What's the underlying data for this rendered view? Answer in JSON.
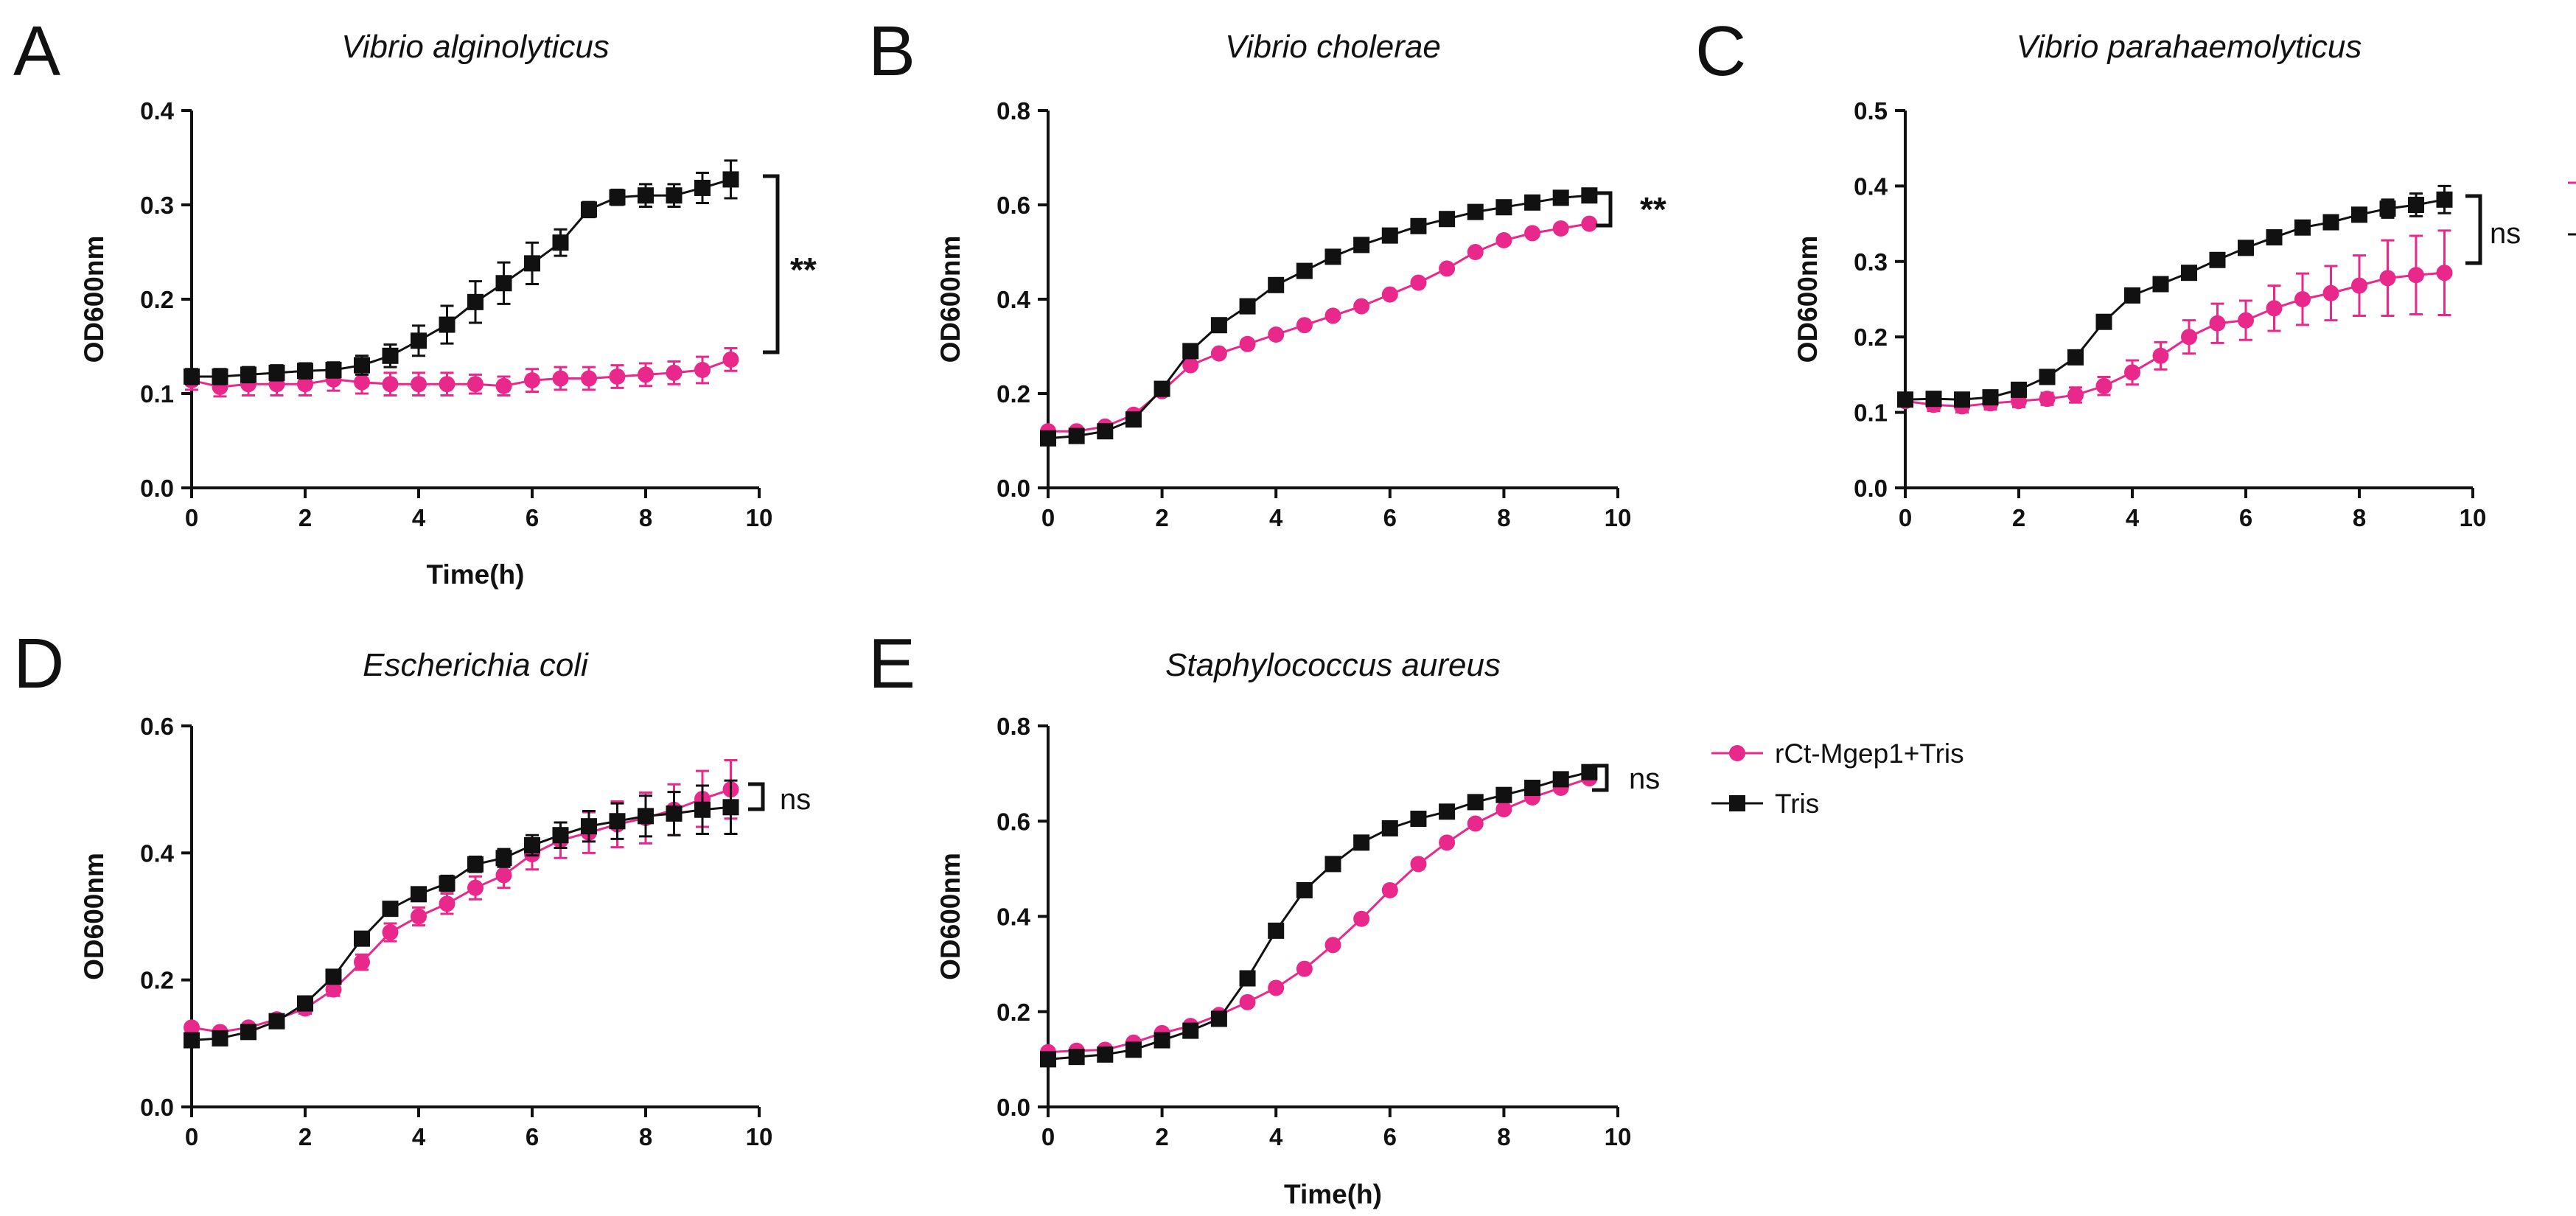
{
  "figure": {
    "legend": [
      {
        "label": "rCt-Mgep1+Tris",
        "color": "#e8288a",
        "marker": "circle"
      },
      {
        "label": "Tris",
        "color": "#111111",
        "marker": "square"
      }
    ]
  },
  "chart_data": [
    {
      "type": "line",
      "panel": "A",
      "title": "Vibrio alginolyticus",
      "xlabel": "Time(h)",
      "ylabel": "OD600nm",
      "xlim": [
        0,
        10
      ],
      "ylim": [
        0,
        0.4
      ],
      "xticks": [
        "0",
        "2",
        "4",
        "6",
        "8",
        "10"
      ],
      "yticks": [
        "0.0",
        "0.1",
        "0.2",
        "0.3",
        "0.4"
      ],
      "significance": "**",
      "x": [
        0,
        0.5,
        1,
        1.5,
        2,
        2.5,
        3,
        3.5,
        4,
        4.5,
        5,
        5.5,
        6,
        6.5,
        7,
        7.5,
        8,
        8.5,
        9,
        9.5
      ],
      "series": [
        {
          "name": "rCt-Mgep1+Tris",
          "color": "#e8288a",
          "marker": "circle",
          "values": [
            0.114,
            0.107,
            0.11,
            0.11,
            0.11,
            0.115,
            0.112,
            0.11,
            0.11,
            0.11,
            0.11,
            0.108,
            0.114,
            0.116,
            0.116,
            0.118,
            0.12,
            0.122,
            0.125,
            0.136
          ],
          "errors": [
            0.01,
            0.01,
            0.012,
            0.012,
            0.012,
            0.012,
            0.012,
            0.012,
            0.012,
            0.012,
            0.01,
            0.01,
            0.012,
            0.012,
            0.012,
            0.012,
            0.012,
            0.012,
            0.014,
            0.012
          ]
        },
        {
          "name": "Tris",
          "color": "#111111",
          "marker": "square",
          "values": [
            0.118,
            0.118,
            0.12,
            0.122,
            0.124,
            0.125,
            0.13,
            0.14,
            0.156,
            0.173,
            0.197,
            0.217,
            0.238,
            0.26,
            0.295,
            0.308,
            0.31,
            0.31,
            0.318,
            0.327
          ],
          "errors": [
            0.008,
            0.008,
            0.008,
            0.008,
            0.008,
            0.008,
            0.01,
            0.012,
            0.016,
            0.02,
            0.022,
            0.022,
            0.022,
            0.014,
            0.008,
            0.008,
            0.012,
            0.012,
            0.016,
            0.02
          ]
        }
      ]
    },
    {
      "type": "line",
      "panel": "B",
      "title": "Vibrio cholerae",
      "xlabel": "",
      "ylabel": "OD600nm",
      "xlim": [
        0,
        10
      ],
      "ylim": [
        0,
        0.8
      ],
      "xticks": [
        "0",
        "2",
        "4",
        "6",
        "8",
        "10"
      ],
      "yticks": [
        "0.0",
        "0.2",
        "0.4",
        "0.6",
        "0.8"
      ],
      "significance": "**",
      "x": [
        0,
        0.5,
        1,
        1.5,
        2,
        2.5,
        3,
        3.5,
        4,
        4.5,
        5,
        5.5,
        6,
        6.5,
        7,
        7.5,
        8,
        8.5,
        9,
        9.5
      ],
      "series": [
        {
          "name": "rCt-Mgep1+Tris",
          "color": "#e8288a",
          "marker": "circle",
          "values": [
            0.12,
            0.12,
            0.13,
            0.155,
            0.205,
            0.26,
            0.285,
            0.305,
            0.325,
            0.345,
            0.365,
            0.385,
            0.41,
            0.435,
            0.465,
            0.5,
            0.525,
            0.54,
            0.55,
            0.56
          ],
          "errors": [
            0.005,
            0.005,
            0.005,
            0.006,
            0.006,
            0.006,
            0.006,
            0.006,
            0.006,
            0.006,
            0.006,
            0.006,
            0.006,
            0.006,
            0.006,
            0.006,
            0.006,
            0.006,
            0.006,
            0.006
          ]
        },
        {
          "name": "Tris",
          "color": "#111111",
          "marker": "square",
          "values": [
            0.105,
            0.11,
            0.12,
            0.145,
            0.21,
            0.29,
            0.345,
            0.385,
            0.43,
            0.46,
            0.49,
            0.515,
            0.535,
            0.555,
            0.57,
            0.585,
            0.595,
            0.605,
            0.615,
            0.62
          ],
          "errors": [
            0.005,
            0.005,
            0.005,
            0.006,
            0.006,
            0.006,
            0.006,
            0.006,
            0.006,
            0.006,
            0.006,
            0.006,
            0.006,
            0.006,
            0.006,
            0.006,
            0.006,
            0.006,
            0.006,
            0.006
          ]
        }
      ]
    },
    {
      "type": "line",
      "panel": "C",
      "title": "Vibrio parahaemolyticus",
      "xlabel": "",
      "ylabel": "OD600nm",
      "xlim": [
        0,
        10
      ],
      "ylim": [
        0,
        0.5
      ],
      "xticks": [
        "0",
        "2",
        "4",
        "6",
        "8",
        "10"
      ],
      "yticks": [
        "0.0",
        "0.1",
        "0.2",
        "0.3",
        "0.4",
        "0.5"
      ],
      "significance": "ns",
      "x": [
        0,
        0.5,
        1,
        1.5,
        2,
        2.5,
        3,
        3.5,
        4,
        4.5,
        5,
        5.5,
        6,
        6.5,
        7,
        7.5,
        8,
        8.5,
        9,
        9.5
      ],
      "series": [
        {
          "name": "rCt-Mgep1+Tris",
          "color": "#e8288a",
          "marker": "circle",
          "values": [
            0.115,
            0.11,
            0.108,
            0.112,
            0.115,
            0.118,
            0.123,
            0.135,
            0.153,
            0.175,
            0.2,
            0.218,
            0.222,
            0.238,
            0.25,
            0.258,
            0.268,
            0.278,
            0.282,
            0.285
          ],
          "errors": [
            0.006,
            0.008,
            0.008,
            0.008,
            0.008,
            0.008,
            0.01,
            0.012,
            0.016,
            0.018,
            0.022,
            0.026,
            0.026,
            0.03,
            0.034,
            0.036,
            0.04,
            0.05,
            0.052,
            0.056
          ]
        },
        {
          "name": "Tris",
          "color": "#111111",
          "marker": "square",
          "values": [
            0.117,
            0.118,
            0.117,
            0.12,
            0.13,
            0.147,
            0.173,
            0.22,
            0.255,
            0.27,
            0.285,
            0.302,
            0.318,
            0.332,
            0.345,
            0.352,
            0.362,
            0.37,
            0.375,
            0.382
          ],
          "errors": [
            0.006,
            0.006,
            0.006,
            0.006,
            0.006,
            0.006,
            0.006,
            0.006,
            0.006,
            0.006,
            0.006,
            0.006,
            0.006,
            0.006,
            0.006,
            0.006,
            0.008,
            0.012,
            0.015,
            0.018
          ]
        }
      ]
    },
    {
      "type": "line",
      "panel": "D",
      "title": "Escherichia coli",
      "xlabel": "",
      "ylabel": "OD600nm",
      "xlim": [
        0,
        10
      ],
      "ylim": [
        0,
        0.6
      ],
      "xticks": [
        "0",
        "2",
        "4",
        "6",
        "8",
        "10"
      ],
      "yticks": [
        "0.0",
        "0.2",
        "0.4",
        "0.6"
      ],
      "significance": "ns",
      "x": [
        0,
        0.5,
        1,
        1.5,
        2,
        2.5,
        3,
        3.5,
        4,
        4.5,
        5,
        5.5,
        6,
        6.5,
        7,
        7.5,
        8,
        8.5,
        9,
        9.5
      ],
      "series": [
        {
          "name": "rCt-Mgep1+Tris",
          "color": "#e8288a",
          "marker": "circle",
          "values": [
            0.125,
            0.118,
            0.125,
            0.138,
            0.155,
            0.185,
            0.228,
            0.275,
            0.3,
            0.32,
            0.345,
            0.365,
            0.398,
            0.42,
            0.432,
            0.445,
            0.455,
            0.468,
            0.485,
            0.5
          ],
          "errors": [
            0.006,
            0.006,
            0.006,
            0.006,
            0.008,
            0.01,
            0.012,
            0.014,
            0.014,
            0.016,
            0.018,
            0.02,
            0.024,
            0.028,
            0.032,
            0.036,
            0.04,
            0.04,
            0.044,
            0.046
          ]
        },
        {
          "name": "Tris",
          "color": "#111111",
          "marker": "square",
          "values": [
            0.105,
            0.108,
            0.118,
            0.135,
            0.163,
            0.205,
            0.265,
            0.312,
            0.335,
            0.352,
            0.382,
            0.392,
            0.412,
            0.428,
            0.442,
            0.45,
            0.458,
            0.462,
            0.468,
            0.472
          ],
          "errors": [
            0.006,
            0.006,
            0.006,
            0.006,
            0.006,
            0.008,
            0.008,
            0.008,
            0.01,
            0.012,
            0.012,
            0.014,
            0.016,
            0.02,
            0.024,
            0.028,
            0.032,
            0.034,
            0.038,
            0.042
          ]
        }
      ]
    },
    {
      "type": "line",
      "panel": "E",
      "title": "Staphylococcus aureus",
      "xlabel": "Time(h)",
      "ylabel": "OD600nm",
      "xlim": [
        0,
        10
      ],
      "ylim": [
        0,
        0.8
      ],
      "xticks": [
        "0",
        "2",
        "4",
        "6",
        "8",
        "10"
      ],
      "yticks": [
        "0.0",
        "0.2",
        "0.4",
        "0.6",
        "0.8"
      ],
      "significance": "ns",
      "x": [
        0,
        0.5,
        1,
        1.5,
        2,
        2.5,
        3,
        3.5,
        4,
        4.5,
        5,
        5.5,
        6,
        6.5,
        7,
        7.5,
        8,
        8.5,
        9,
        9.5
      ],
      "series": [
        {
          "name": "rCt-Mgep1+Tris",
          "color": "#e8288a",
          "marker": "circle",
          "values": [
            0.115,
            0.118,
            0.12,
            0.135,
            0.155,
            0.17,
            0.193,
            0.22,
            0.25,
            0.29,
            0.34,
            0.395,
            0.455,
            0.51,
            0.555,
            0.595,
            0.625,
            0.65,
            0.67,
            0.69
          ],
          "errors": [
            0.006,
            0.006,
            0.006,
            0.006,
            0.006,
            0.006,
            0.006,
            0.006,
            0.006,
            0.006,
            0.006,
            0.006,
            0.006,
            0.006,
            0.006,
            0.006,
            0.006,
            0.006,
            0.006,
            0.006
          ]
        },
        {
          "name": "Tris",
          "color": "#111111",
          "marker": "square",
          "values": [
            0.1,
            0.105,
            0.11,
            0.12,
            0.14,
            0.16,
            0.185,
            0.27,
            0.37,
            0.455,
            0.51,
            0.555,
            0.585,
            0.605,
            0.62,
            0.64,
            0.655,
            0.67,
            0.688,
            0.703
          ],
          "errors": [
            0.006,
            0.006,
            0.006,
            0.006,
            0.006,
            0.006,
            0.006,
            0.006,
            0.006,
            0.006,
            0.006,
            0.006,
            0.006,
            0.006,
            0.006,
            0.006,
            0.006,
            0.006,
            0.006,
            0.006
          ]
        }
      ]
    }
  ]
}
